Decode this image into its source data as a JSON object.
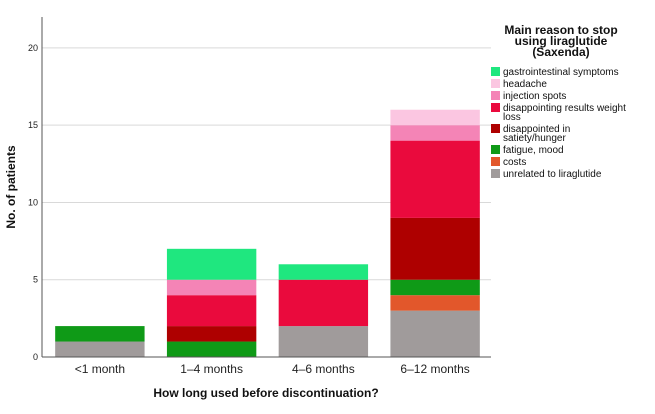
{
  "chart_data": {
    "type": "bar",
    "stacked": true,
    "xlabel": "How long used before discontinuation?",
    "ylabel": "No. of patients",
    "ylim": [
      0,
      22
    ],
    "yticks": [
      0,
      5,
      10,
      15,
      20
    ],
    "grid": true,
    "categories": [
      "<1 month",
      "1–4 months",
      "4–6 months",
      "6–12 months"
    ],
    "legend": {
      "title_lines": [
        "Main reason to stop",
        "using liraglutide",
        "(Saxenda)"
      ],
      "placement": "right"
    },
    "series": [
      {
        "name": "unrelated to liraglutide",
        "label_lines": [
          "unrelated to liraglutide"
        ],
        "color": "#a09b9b",
        "values": [
          1,
          0,
          2,
          3
        ]
      },
      {
        "name": "costs",
        "label_lines": [
          "costs"
        ],
        "color": "#e2572b",
        "values": [
          0,
          0,
          0,
          1
        ]
      },
      {
        "name": "fatigue, mood",
        "label_lines": [
          "fatigue, mood"
        ],
        "color": "#0f9a17",
        "values": [
          1,
          1,
          0,
          1
        ]
      },
      {
        "name": "disappointed in satiety/hunger",
        "label_lines": [
          "disappointed in",
          "satiety/hunger"
        ],
        "color": "#ae0000",
        "values": [
          0,
          1,
          0,
          4
        ]
      },
      {
        "name": "disappointing results weight loss",
        "label_lines": [
          "disappointing results weight",
          "loss"
        ],
        "color": "#ea0a3d",
        "values": [
          0,
          2,
          3,
          5
        ]
      },
      {
        "name": "injection spots",
        "label_lines": [
          "injection spots"
        ],
        "color": "#f484b6",
        "values": [
          0,
          1,
          0,
          1
        ]
      },
      {
        "name": "headache",
        "label_lines": [
          "headache"
        ],
        "color": "#fbc6e1",
        "values": [
          0,
          0,
          0,
          1
        ]
      },
      {
        "name": "gastrointestinal symptoms",
        "label_lines": [
          "gastrointestinal symptoms"
        ],
        "color": "#1fe77f",
        "values": [
          0,
          2,
          1,
          0
        ]
      }
    ]
  }
}
